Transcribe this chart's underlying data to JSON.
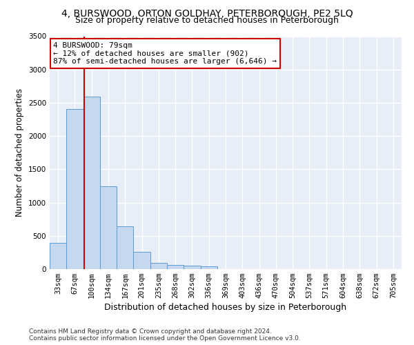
{
  "title": "4, BURSWOOD, ORTON GOLDHAY, PETERBOROUGH, PE2 5LQ",
  "subtitle": "Size of property relative to detached houses in Peterborough",
  "xlabel": "Distribution of detached houses by size in Peterborough",
  "ylabel": "Number of detached properties",
  "categories": [
    "33sqm",
    "67sqm",
    "100sqm",
    "134sqm",
    "167sqm",
    "201sqm",
    "235sqm",
    "268sqm",
    "302sqm",
    "336sqm",
    "369sqm",
    "403sqm",
    "436sqm",
    "470sqm",
    "504sqm",
    "537sqm",
    "571sqm",
    "604sqm",
    "638sqm",
    "672sqm",
    "705sqm"
  ],
  "values": [
    390,
    2410,
    2590,
    1240,
    640,
    255,
    95,
    60,
    55,
    40,
    0,
    0,
    0,
    0,
    0,
    0,
    0,
    0,
    0,
    0,
    0
  ],
  "bar_color": "#c5d8f0",
  "bar_edge_color": "#5b9bd5",
  "vline_x": 1.55,
  "vline_color": "#cc0000",
  "annotation_text": "4 BURSWOOD: 79sqm\n← 12% of detached houses are smaller (902)\n87% of semi-detached houses are larger (6,646) →",
  "annotation_box_color": "#ffffff",
  "annotation_box_edge_color": "#cc0000",
  "ylim": [
    0,
    3500
  ],
  "yticks": [
    0,
    500,
    1000,
    1500,
    2000,
    2500,
    3000,
    3500
  ],
  "bg_color": "#e8eef8",
  "grid_color": "#ffffff",
  "footer": "Contains HM Land Registry data © Crown copyright and database right 2024.\nContains public sector information licensed under the Open Government Licence v3.0.",
  "title_fontsize": 10,
  "subtitle_fontsize": 9,
  "xlabel_fontsize": 9,
  "ylabel_fontsize": 8.5,
  "tick_fontsize": 7.5,
  "annotation_fontsize": 8,
  "footer_fontsize": 6.5
}
